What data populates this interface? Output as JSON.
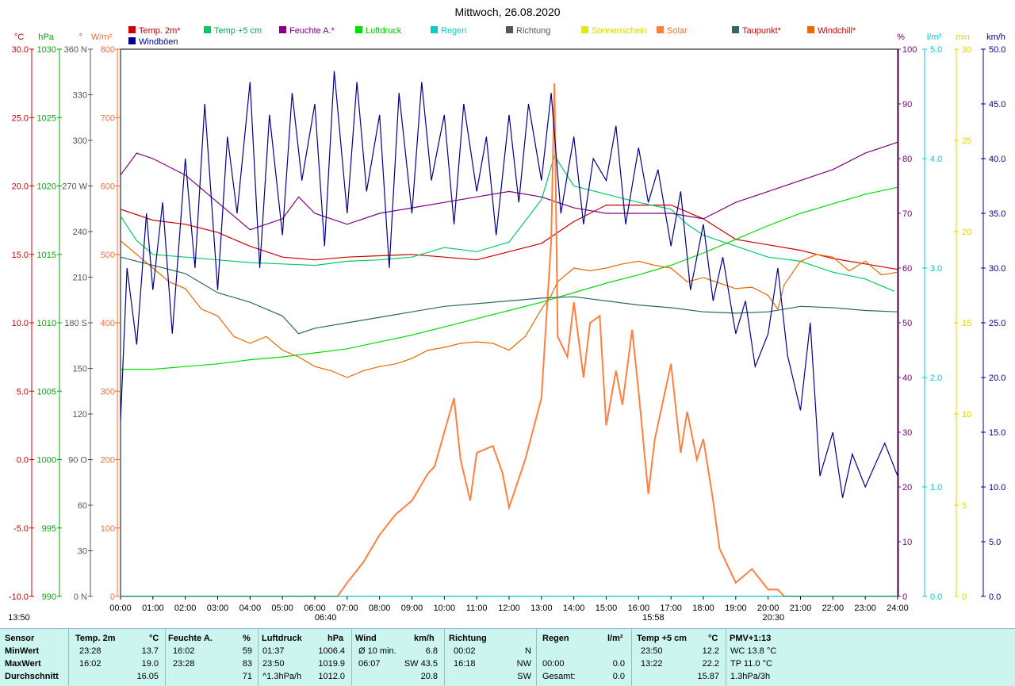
{
  "title": "Mittwoch, 26.08.2020",
  "colors": {
    "temp": "#cc0000",
    "temp5": "#00cc66",
    "humidity": "#800080",
    "pressure": "#00dd00",
    "rain": "#00cccc",
    "direction": "#555555",
    "sunshine": "#e8e800",
    "solar": "#ff7f3f",
    "dewpoint": "#336666",
    "windchill": "#e86a00",
    "gust": "#00008b",
    "grid": "#888888"
  },
  "legend": [
    {
      "key": "temp",
      "label": "Temp. 2m*"
    },
    {
      "key": "temp5",
      "label": "Temp +5 cm"
    },
    {
      "key": "humidity",
      "label": "Feuchte A.*"
    },
    {
      "key": "pressure",
      "label": "Luftdruck"
    },
    {
      "key": "rain",
      "label": "Regen"
    },
    {
      "key": "direction",
      "label": "Richtung"
    },
    {
      "key": "sunshine",
      "label": "Sonnenschein"
    },
    {
      "key": "solar",
      "label": "Solar"
    },
    {
      "key": "dewpoint",
      "label": "Taupunkt*"
    },
    {
      "key": "windchill",
      "label": "Windchill*"
    },
    {
      "key": "gust",
      "label": "Windböen"
    }
  ],
  "axis_units": {
    "temp": "°C",
    "pressure": "hPa",
    "direction": "°",
    "solar": "W/m²",
    "humidity": "%",
    "rain": "l/m²",
    "sunshine": "min",
    "wind": "km/h"
  },
  "sun_marks": {
    "sunrise": "06:40",
    "noon": "13:50",
    "sunset": "20:30",
    "transit": "15:58"
  },
  "chart_data": {
    "type": "line",
    "x_ticks": [
      "00:00",
      "01:00",
      "02:00",
      "03:00",
      "04:00",
      "05:00",
      "06:00",
      "07:00",
      "08:00",
      "09:00",
      "10:00",
      "11:00",
      "12:00",
      "13:00",
      "14:00",
      "15:00",
      "16:00",
      "17:00",
      "18:00",
      "19:00",
      "20:00",
      "21:00",
      "22:00",
      "23:00",
      "24:00"
    ],
    "x_range": [
      0,
      24
    ],
    "axes": {
      "temp": {
        "range": [
          -10,
          30
        ],
        "ticks": [
          "30.0",
          "25.0",
          "20.0",
          "15.0",
          "10.0",
          "5.0",
          "0.0",
          "-5.0",
          "-10.0"
        ]
      },
      "pressure": {
        "range": [
          990,
          1030
        ],
        "ticks": [
          "1030",
          "1025",
          "1020",
          "1015",
          "1010",
          "1005",
          "1000",
          "995",
          "990"
        ]
      },
      "direction": {
        "range": [
          0,
          360
        ],
        "ticks": [
          "360 N",
          "330",
          "300",
          "270 W",
          "240",
          "210",
          "180 S",
          "150",
          "120",
          "90 O",
          "60",
          "30",
          "0 N"
        ]
      },
      "solar": {
        "range": [
          0,
          800
        ],
        "ticks": [
          "800",
          "700",
          "600",
          "500",
          "400",
          "300",
          "200",
          "100",
          "0"
        ]
      },
      "humidity": {
        "range": [
          0,
          100
        ],
        "ticks": [
          "100",
          "90",
          "80",
          "70",
          "60",
          "50",
          "40",
          "30",
          "20",
          "10",
          "0"
        ]
      },
      "rain": {
        "range": [
          0,
          5
        ],
        "ticks": [
          "5.0",
          "4.0",
          "3.0",
          "2.0",
          "1.0",
          "0.0"
        ]
      },
      "sunshine": {
        "range": [
          0,
          30
        ],
        "ticks": [
          "30",
          "25",
          "20",
          "15",
          "10",
          "5",
          "0"
        ]
      },
      "wind": {
        "range": [
          0,
          50
        ],
        "ticks": [
          "50.0",
          "45.0",
          "40.0",
          "35.0",
          "30.0",
          "25.0",
          "20.0",
          "15.0",
          "10.0",
          "5.0",
          "0.0"
        ]
      }
    },
    "series": [
      {
        "name": "Temp. 2m*",
        "axis": "temp",
        "color": "temp",
        "x": [
          0,
          1,
          2,
          3,
          4,
          5,
          6,
          7,
          8,
          9,
          10,
          11,
          12,
          13,
          14,
          15,
          16,
          17,
          18,
          19,
          20,
          21,
          22,
          23,
          24
        ],
        "y": [
          18.3,
          17.5,
          17.2,
          16.6,
          15.6,
          14.8,
          14.6,
          14.8,
          14.9,
          15.0,
          14.8,
          14.6,
          15.2,
          15.8,
          17.4,
          18.6,
          18.6,
          18.6,
          17.6,
          16.1,
          15.7,
          15.3,
          14.7,
          14.3,
          13.9
        ]
      },
      {
        "name": "Temp +5 cm",
        "axis": "temp",
        "color": "temp5",
        "x": [
          0,
          0.5,
          1,
          2,
          3,
          4,
          5,
          6,
          7,
          8,
          9,
          10,
          11,
          12,
          13,
          13.4,
          14,
          15,
          16,
          17,
          17.5,
          18,
          19,
          20,
          21,
          22,
          23,
          23.9
        ],
        "y": [
          17.8,
          16.0,
          15.0,
          14.8,
          14.6,
          14.4,
          14.3,
          14.2,
          14.5,
          14.6,
          14.8,
          15.5,
          15.2,
          15.9,
          19.0,
          22.2,
          20.0,
          19.4,
          18.8,
          18.3,
          17.2,
          16.4,
          15.6,
          14.8,
          14.5,
          13.7,
          13.2,
          12.3
        ]
      },
      {
        "name": "Feuchte A.*",
        "axis": "humidity",
        "color": "humidity",
        "x": [
          0,
          0.5,
          1,
          2,
          3,
          4,
          5,
          5.5,
          6,
          7,
          8,
          9,
          10,
          11,
          12,
          13,
          14,
          15,
          16,
          17,
          18,
          19,
          20,
          21,
          22,
          23,
          24
        ],
        "y": [
          77,
          81,
          80,
          77,
          72,
          67,
          69,
          73,
          70,
          68,
          70,
          71,
          72,
          73,
          74,
          73,
          71,
          70,
          70,
          70,
          69,
          72,
          74,
          76,
          78,
          81,
          83
        ]
      },
      {
        "name": "Luftdruck",
        "axis": "pressure",
        "color": "pressure",
        "x": [
          0,
          1,
          2,
          3,
          4,
          5,
          6,
          7,
          8,
          9,
          10,
          11,
          12,
          13,
          14,
          15,
          16,
          17,
          18,
          19,
          20,
          21,
          22,
          23,
          24
        ],
        "y": [
          1006.6,
          1006.6,
          1006.8,
          1007.0,
          1007.3,
          1007.5,
          1007.8,
          1008.1,
          1008.6,
          1009.1,
          1009.7,
          1010.3,
          1010.9,
          1011.5,
          1012.2,
          1012.9,
          1013.5,
          1014.2,
          1015.1,
          1016.1,
          1017.1,
          1018.0,
          1018.7,
          1019.4,
          1019.9
        ]
      },
      {
        "name": "Solar",
        "axis": "solar",
        "color": "solar",
        "x": [
          0,
          6.7,
          7,
          7.5,
          8,
          8.5,
          9,
          9.5,
          9.7,
          10,
          10.3,
          10.5,
          10.8,
          11,
          11.5,
          11.8,
          12,
          12.5,
          13,
          13.3,
          13.4,
          13.5,
          13.8,
          14,
          14.3,
          14.5,
          14.8,
          15,
          15.3,
          15.5,
          15.8,
          16,
          16.3,
          16.5,
          17,
          17.3,
          17.5,
          17.8,
          18,
          18.3,
          18.5,
          19,
          19.5,
          20,
          20.3,
          20.5,
          21,
          24
        ],
        "y": [
          0,
          0,
          20,
          50,
          90,
          120,
          140,
          180,
          190,
          240,
          290,
          200,
          140,
          210,
          220,
          180,
          130,
          200,
          290,
          520,
          750,
          380,
          350,
          430,
          320,
          400,
          410,
          250,
          330,
          280,
          390,
          300,
          150,
          230,
          340,
          210,
          270,
          200,
          230,
          140,
          70,
          20,
          40,
          10,
          10,
          0,
          0,
          0
        ]
      },
      {
        "name": "Taupunkt*",
        "axis": "temp",
        "color": "dewpoint",
        "x": [
          0,
          1,
          2,
          3,
          4,
          5,
          5.5,
          6,
          7,
          8,
          9,
          10,
          11,
          12,
          13,
          14,
          15,
          16,
          17,
          18,
          19,
          20,
          21,
          22,
          23,
          24
        ],
        "y": [
          14.8,
          14.2,
          13.6,
          12.2,
          11.5,
          10.5,
          9.2,
          9.6,
          10.0,
          10.4,
          10.8,
          11.2,
          11.4,
          11.6,
          11.8,
          11.9,
          11.6,
          11.3,
          11.1,
          10.8,
          10.7,
          10.8,
          11.2,
          11.1,
          10.9,
          10.8
        ]
      },
      {
        "name": "Windchill*",
        "axis": "temp",
        "color": "windchill",
        "x": [
          0,
          0.5,
          1,
          1.5,
          2,
          2.5,
          3,
          3.5,
          4,
          4.5,
          5,
          5.5,
          6,
          6.5,
          7,
          7.5,
          8,
          8.5,
          9,
          9.5,
          10,
          10.5,
          11,
          11.5,
          12,
          12.5,
          13,
          13.3,
          13.5,
          14,
          14.5,
          15,
          15.5,
          16,
          16.5,
          17,
          17.5,
          18,
          18.5,
          19,
          19.5,
          20,
          20.3,
          20.5,
          21,
          21.5,
          22,
          22.5,
          23,
          23.5,
          24
        ],
        "y": [
          16,
          15,
          14,
          13,
          12.5,
          11,
          10.5,
          9,
          8.5,
          9,
          8,
          7.5,
          6.8,
          6.5,
          6.0,
          6.5,
          6.8,
          7.0,
          7.4,
          8.0,
          8.2,
          8.5,
          8.6,
          8.5,
          8.0,
          9.0,
          11.0,
          12.0,
          13.0,
          14.0,
          13.8,
          14.0,
          14.3,
          14.5,
          14.2,
          14.0,
          13.0,
          13.3,
          12.9,
          12.5,
          12.6,
          12.0,
          11.0,
          12.8,
          14.5,
          15.0,
          14.8,
          13.8,
          14.5,
          13.5,
          13.7
        ]
      },
      {
        "name": "Windböen",
        "axis": "wind",
        "color": "gust",
        "x": [
          0,
          0.2,
          0.5,
          0.8,
          1,
          1.3,
          1.6,
          2,
          2.3,
          2.6,
          3,
          3.3,
          3.6,
          4,
          4.3,
          4.6,
          5,
          5.3,
          5.6,
          6,
          6.3,
          6.6,
          7,
          7.3,
          7.6,
          8,
          8.3,
          8.6,
          9,
          9.3,
          9.6,
          10,
          10.3,
          10.6,
          11,
          11.3,
          11.6,
          12,
          12.3,
          12.6,
          13,
          13.3,
          13.6,
          14,
          14.3,
          14.6,
          15,
          15.3,
          15.6,
          16,
          16.3,
          16.6,
          17,
          17.3,
          17.6,
          18,
          18.3,
          18.6,
          19,
          19.3,
          19.6,
          20,
          20.3,
          20.6,
          21,
          21.3,
          21.6,
          22,
          22.3,
          22.6,
          23,
          23.3,
          23.6,
          24
        ],
        "y": [
          16,
          30,
          23,
          35,
          28,
          36,
          24,
          40,
          30,
          45,
          28,
          42,
          35,
          47,
          30,
          44,
          33,
          46,
          38,
          45,
          32,
          48,
          35,
          47,
          37,
          44,
          30,
          46,
          35,
          47,
          38,
          44,
          34,
          45,
          37,
          42,
          33,
          44,
          36,
          45,
          38,
          46,
          35,
          42,
          34,
          40,
          38,
          43,
          34,
          41,
          36,
          39,
          32,
          37,
          28,
          34,
          27,
          31,
          24,
          27,
          21,
          24,
          30,
          22,
          17,
          25,
          11,
          15,
          9,
          13,
          10,
          12,
          14,
          11
        ]
      },
      {
        "name": "Regen",
        "axis": "rain",
        "color": "rain",
        "x": [
          0,
          24
        ],
        "y": [
          0,
          0
        ]
      }
    ]
  },
  "stats": {
    "headers": [
      "Sensor",
      "Temp. 2m",
      "°C",
      "Feuchte A.",
      "%",
      "Luftdruck",
      "hPa",
      "Wind",
      "km/h",
      "Richtung",
      "Regen",
      "l/m²",
      "Temp +5 cm",
      "°C",
      "PMV+1:13"
    ],
    "rows": [
      {
        "label": "MinWert",
        "temp_time": "23:28",
        "temp_val": "13.7",
        "hum_time": "16:02",
        "hum_val": "59",
        "pres_time": "01:37",
        "pres_val": "1006.4",
        "wind_label": "Ø 10 min.",
        "wind_val": "6.8",
        "dir_time": "00:02",
        "dir_val": "N",
        "rain_time": "",
        "rain_val": "",
        "t5_time": "23:50",
        "t5_val": "12.2",
        "pmv": "WC 13.8 °C"
      },
      {
        "label": "MaxWert",
        "temp_time": "16:02",
        "temp_val": "19.0",
        "hum_time": "23:28",
        "hum_val": "83",
        "pres_time": "23:50",
        "pres_val": "1019.9",
        "wind_label": "06:07",
        "wind_val": "SW 43.5",
        "dir_time": "16:18",
        "dir_val": "NW",
        "rain_time": "00:00",
        "rain_val": "0.0",
        "t5_time": "13:22",
        "t5_val": "22.2",
        "pmv": "TP 11.0 °C"
      },
      {
        "label": "Durchschnitt",
        "temp_time": "",
        "temp_val": "16.05",
        "hum_time": "",
        "hum_val": "71",
        "pres_time": "^1.3hPa/h",
        "pres_val": "1012.0",
        "wind_label": "",
        "wind_val": "20.8",
        "dir_time": "",
        "dir_val": "SW",
        "rain_time": "Gesamt:",
        "rain_val": "0.0",
        "t5_time": "",
        "t5_val": "15.87",
        "pmv": "1.3hPa/3h"
      }
    ]
  }
}
